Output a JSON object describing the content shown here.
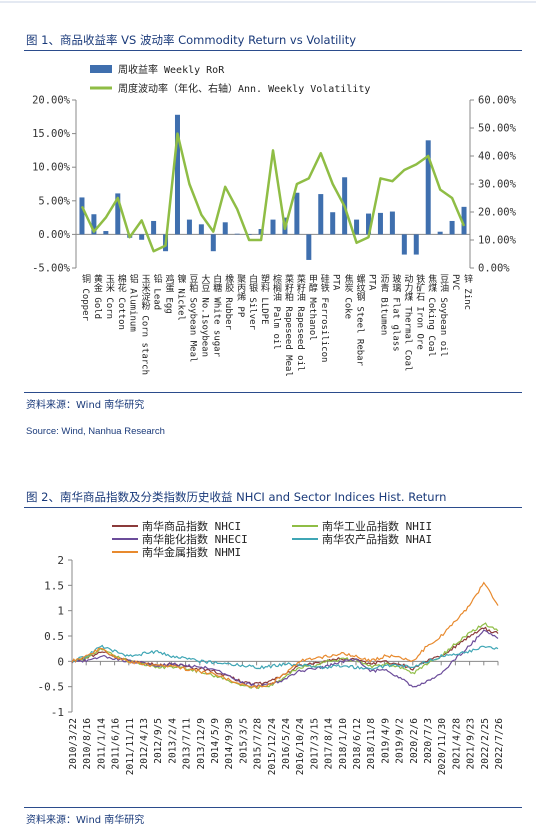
{
  "figure1": {
    "title": "图 1、商品收益率 VS 波动率  Commodity Return vs Volatility",
    "source_cn": "资料来源：Wind 南华研究",
    "source_en": "Source: Wind, Nanhua Research",
    "chart_data": {
      "type": "bar",
      "title": "图 1、商品收益率 VS 波动率  Commodity Return vs Volatility",
      "categories": [
        "铜 Copper",
        "黄金 Gold",
        "玉米 Corn",
        "棉花 Cotton",
        "铝 Aluminum",
        "玉米淀粉 Corn starch",
        "铅 Lead",
        "鸡蛋 Egg",
        "镍 Nickel",
        "豆粕 Soybean Meal",
        "大豆 No.1soybean",
        "白糖 White sugar",
        "橡胶 Rubber",
        "聚丙烯 PP",
        "白银 Silver",
        "塑料 LLDPE",
        "棕榈油 Palm oil",
        "菜籽粕 Rapeseed Meal",
        "菜籽油 Rapeseed oil",
        "甲醇 Methanol",
        "硅铁 Ferrosilicon",
        "PTA",
        "焦炭 Coke",
        "螺纹钢 Steel Rebar",
        "PTA",
        "沥青 Bitumen",
        "玻璃 Flat glass",
        "动力煤 Thermal Coal",
        "铁矿石 Iron Ore",
        "焦煤 Coking Coal",
        "豆油 Soybean oil",
        "PVC",
        "锌 Zinc"
      ],
      "series": [
        {
          "name": "周收益率 Weekly RoR",
          "axis": "left",
          "color": "#3f6fae",
          "values": [
            5.5,
            3.0,
            0.5,
            6.1,
            -0.5,
            -0.8,
            2.0,
            -2.5,
            17.8,
            2.2,
            1.5,
            -2.5,
            1.8,
            0.1,
            0.0,
            0.8,
            2.2,
            2.5,
            6.2,
            -3.8,
            6.0,
            3.3,
            8.5,
            2.2,
            3.1,
            3.2,
            3.4,
            -3.0,
            -3.0,
            14.0,
            0.4,
            2.0,
            4.1
          ]
        },
        {
          "name": "周度波动率（年化、右轴）Ann. Weekly Volatility",
          "axis": "right",
          "color": "#8fbd45",
          "values": [
            22.0,
            13.0,
            18.0,
            25.0,
            11.0,
            17.0,
            6.0,
            8.0,
            48.0,
            30.0,
            19.0,
            13.0,
            29.0,
            21.0,
            10.0,
            10.0,
            42.0,
            14.0,
            30.0,
            32.0,
            41.0,
            30.0,
            22.0,
            9.0,
            11.0,
            32.0,
            31.0,
            35.0,
            37.0,
            40.0,
            28.0,
            25.0,
            15.0
          ]
        }
      ],
      "ylim_left": [
        -5,
        20
      ],
      "yticks_left": [
        "20.00%",
        "15.00%",
        "10.00%",
        "5.00%",
        "0.00%",
        "-5.00%"
      ],
      "ylim_right": [
        0,
        60
      ],
      "yticks_right": [
        "60.00%",
        "50.00%",
        "40.00%",
        "30.00%",
        "20.00%",
        "10.00%",
        "0.00%"
      ],
      "legend": "top-left"
    }
  },
  "figure2": {
    "title": "图 2、南华商品指数及分类指数历史收益  NHCI and Sector Indices Hist. Return",
    "source_cn": "资料来源：Wind 南华研究",
    "chart_data": {
      "type": "line",
      "title": "图 2、南华商品指数及分类指数历史收益  NHCI and Sector Indices Hist. Return",
      "x": [
        "2010/3/22",
        "2010/8/16",
        "2011/1/14",
        "2011/6/16",
        "2011/11/11",
        "2012/4/13",
        "2012/9/5",
        "2013/2/4",
        "2013/7/11",
        "2013/12/9",
        "2014/5/9",
        "2014/9/30",
        "2015/3/5",
        "2015/7/28",
        "2015/12/24",
        "2016/5/24",
        "2016/10/24",
        "2017/3/15",
        "2017/8/14",
        "2018/1/10",
        "2018/6/12",
        "2018/11/8",
        "2019/4/9",
        "2019/9/2",
        "2020/2/6",
        "2020/7/3",
        "2020/11/30",
        "2021/4/28",
        "2021/9/23",
        "2022/2/25",
        "2022/7/26"
      ],
      "series": [
        {
          "name": "南华商品指数 NHCI",
          "color": "#8b3a3a",
          "values": [
            0.0,
            0.05,
            0.2,
            0.1,
            0.02,
            -0.02,
            -0.08,
            -0.05,
            -0.1,
            -0.15,
            -0.2,
            -0.3,
            -0.4,
            -0.45,
            -0.4,
            -0.25,
            -0.1,
            -0.05,
            0.0,
            0.05,
            0.02,
            -0.05,
            0.0,
            -0.05,
            -0.15,
            0.0,
            0.1,
            0.3,
            0.5,
            0.65,
            0.55
          ]
        },
        {
          "name": "南华工业品指数 NHII",
          "color": "#8fbd45",
          "values": [
            0.0,
            0.05,
            0.25,
            0.12,
            0.0,
            -0.05,
            -0.12,
            -0.1,
            -0.15,
            -0.2,
            -0.28,
            -0.38,
            -0.48,
            -0.52,
            -0.48,
            -0.3,
            -0.12,
            -0.08,
            0.0,
            0.05,
            0.02,
            -0.1,
            -0.05,
            -0.1,
            -0.25,
            -0.05,
            0.1,
            0.35,
            0.55,
            0.75,
            0.6
          ]
        },
        {
          "name": "南华能化指数 NHECI",
          "color": "#6b4c9a",
          "values": [
            0.0,
            0.02,
            0.1,
            0.05,
            0.0,
            -0.02,
            -0.1,
            -0.05,
            -0.08,
            -0.12,
            -0.15,
            -0.3,
            -0.42,
            -0.48,
            -0.45,
            -0.35,
            -0.2,
            -0.15,
            -0.1,
            0.0,
            0.05,
            -0.2,
            -0.15,
            -0.3,
            -0.5,
            -0.4,
            -0.25,
            0.05,
            0.3,
            0.6,
            0.45
          ]
        },
        {
          "name": "南华农产品指数 NHAI",
          "color": "#3fa6b5",
          "values": [
            0.0,
            0.1,
            0.3,
            0.2,
            0.1,
            0.15,
            0.2,
            0.1,
            0.05,
            0.0,
            -0.02,
            -0.05,
            -0.08,
            -0.12,
            -0.1,
            -0.05,
            -0.08,
            -0.1,
            -0.12,
            -0.08,
            -0.12,
            -0.15,
            -0.1,
            -0.08,
            -0.1,
            0.0,
            0.1,
            0.15,
            0.2,
            0.3,
            0.25
          ]
        },
        {
          "name": "南华金属指数 NHMI",
          "color": "#e88a2e",
          "values": [
            0.0,
            0.1,
            0.25,
            0.1,
            0.0,
            -0.05,
            -0.1,
            -0.08,
            -0.15,
            -0.2,
            -0.25,
            -0.35,
            -0.45,
            -0.5,
            -0.45,
            -0.25,
            0.0,
            0.05,
            0.1,
            0.15,
            0.1,
            0.0,
            0.1,
            0.1,
            0.0,
            0.3,
            0.5,
            0.8,
            1.1,
            1.55,
            1.1
          ]
        }
      ],
      "ylim": [
        -1,
        2
      ],
      "yticks": [
        "2",
        "1.5",
        "1",
        "0.5",
        "0",
        "-0.5",
        "-1"
      ],
      "legend": "top"
    }
  }
}
